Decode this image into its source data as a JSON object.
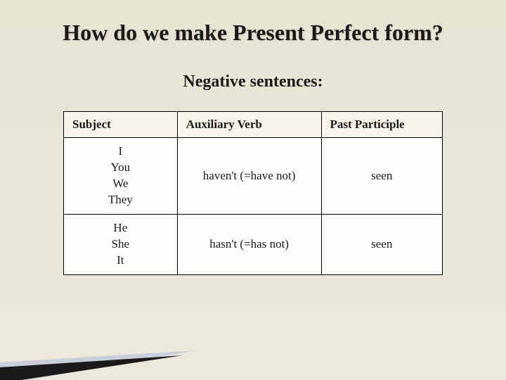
{
  "title": "How do we make Present Perfect form?",
  "subtitle": "Negative sentences:",
  "table": {
    "headers": [
      "Subject",
      "Auxiliary Verb",
      "Past Participle"
    ],
    "rows": [
      {
        "subject_lines": [
          "I",
          "You",
          "We",
          "They"
        ],
        "aux": "haven't (=have not)",
        "participle": "seen"
      },
      {
        "subject_lines": [
          "He",
          "She",
          "It"
        ],
        "aux": "hasn't (=has not)",
        "participle": "seen"
      }
    ],
    "column_widths": [
      "30%",
      "38%",
      "32%"
    ]
  },
  "colors": {
    "background_top": "#e8e4d4",
    "background_bottom": "#ece8dc",
    "table_bg": "#fdfdfb",
    "header_bg": "#f5f3ea",
    "border": "#000000",
    "text": "#1a1a1a",
    "swoosh_dark": "#1a1a1a",
    "swoosh_light": "#c8ceda"
  },
  "typography": {
    "title_fontsize": 32,
    "subtitle_fontsize": 24,
    "table_fontsize": 17,
    "font_family": "Georgia, Times New Roman, serif"
  }
}
